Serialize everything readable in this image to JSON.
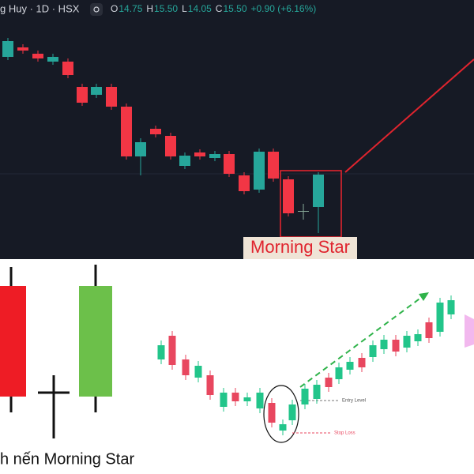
{
  "header": {
    "symbol": "g Huy · 1D · HSX",
    "ohlc": [
      {
        "key": "O",
        "value": "14.75"
      },
      {
        "key": "H",
        "value": "15.50"
      },
      {
        "key": "L",
        "value": "14.05"
      },
      {
        "key": "C",
        "value": "15.50"
      }
    ],
    "change": "+0.90 (+6.16%)"
  },
  "pattern_label": "Morning Star",
  "caption": "h nến Morning Star",
  "entry_label": "Entry Level",
  "stop_label": "Stop Loss"
}
